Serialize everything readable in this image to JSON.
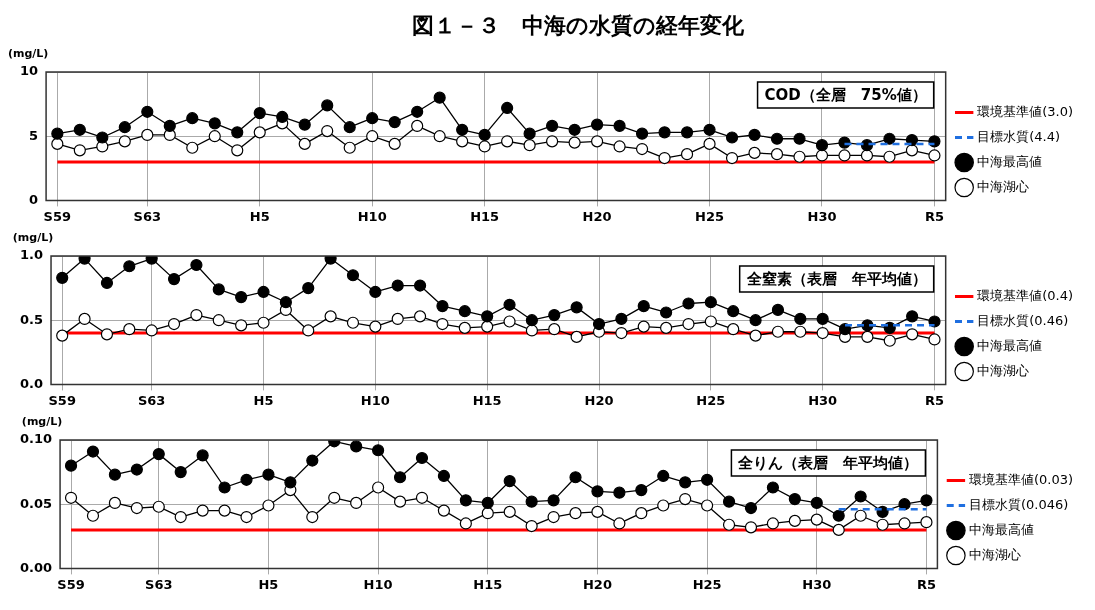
{
  "chart_data": [
    {
      "type": "line",
      "title": "図１－３　中海の水質の経年変化",
      "ylabel": "(mg/L)",
      "categories": [
        "S59",
        null,
        null,
        null,
        "S63",
        null,
        null,
        null,
        null,
        "H5",
        null,
        null,
        null,
        null,
        "H10",
        null,
        null,
        null,
        null,
        "H15",
        null,
        null,
        null,
        null,
        "H20",
        null,
        null,
        null,
        null,
        "H25",
        null,
        null,
        null,
        null,
        "H30",
        null,
        null,
        null,
        null,
        "R5"
      ],
      "series": [
        {
          "name": "目標水質(4.4)",
          "color": "#1f6fe0",
          "marker": "none",
          "line_style": "dashed",
          "values": [
            null,
            null,
            null,
            null,
            null,
            null,
            null,
            null,
            null,
            null,
            null,
            null,
            null,
            null,
            null,
            null,
            null,
            null,
            null,
            null,
            null,
            null,
            null,
            null,
            null,
            null,
            null,
            null,
            null,
            null,
            null,
            null,
            null,
            null,
            null,
            4.4,
            4.4,
            4.4,
            4.4,
            4.4
          ]
        },
        {
          "name": "中海最高値",
          "color": "#000000",
          "values": [
            5.2,
            5.5,
            4.9,
            5.7,
            6.9,
            5.8,
            6.4,
            6.0,
            5.3,
            6.8,
            6.5,
            5.9,
            7.4,
            5.7,
            6.4,
            6.1,
            6.9,
            8.0,
            5.5,
            5.1,
            7.2,
            5.2,
            5.8,
            5.5,
            5.9,
            5.8,
            5.2,
            5.3,
            5.3,
            5.5,
            4.9,
            5.1,
            4.8,
            4.8,
            4.3,
            4.5,
            4.3,
            4.8,
            4.7,
            4.6
          ]
        },
        {
          "name": "中海湖心",
          "color": "#ffffff",
          "values": [
            4.4,
            3.9,
            4.2,
            4.6,
            5.1,
            5.1,
            4.1,
            5.0,
            3.9,
            5.3,
            6.0,
            4.4,
            5.4,
            4.1,
            5.0,
            4.4,
            5.8,
            5.0,
            4.6,
            4.2,
            4.6,
            4.3,
            4.6,
            4.5,
            4.6,
            4.2,
            4.0,
            3.3,
            3.6,
            4.4,
            3.3,
            3.7,
            3.6,
            3.4,
            3.5,
            3.5,
            3.5,
            3.4,
            3.9,
            3.5
          ]
        }
      ],
      "ref_lines": [
        {
          "axis": "y",
          "value": 3.0,
          "label": "環境基準値(3.0)",
          "color": "#ff0000"
        }
      ],
      "annotations": [
        "COD（全層　75%値）"
      ],
      "ylim": [
        0,
        10
      ],
      "yticks": [
        0,
        5,
        10
      ],
      "grid": true,
      "legend": "right",
      "marker": "circle",
      "line_style": "solid"
    },
    {
      "type": "line",
      "ylabel": "(mg/L)",
      "categories": [
        "S59",
        null,
        null,
        null,
        "S63",
        null,
        null,
        null,
        null,
        "H5",
        null,
        null,
        null,
        null,
        "H10",
        null,
        null,
        null,
        null,
        "H15",
        null,
        null,
        null,
        null,
        "H20",
        null,
        null,
        null,
        null,
        "H25",
        null,
        null,
        null,
        null,
        "H30",
        null,
        null,
        null,
        null,
        "R5"
      ],
      "series": [
        {
          "name": "目標水質(0.46)",
          "color": "#1f6fe0",
          "marker": "none",
          "line_style": "dashed",
          "values": [
            null,
            null,
            null,
            null,
            null,
            null,
            null,
            null,
            null,
            null,
            null,
            null,
            null,
            null,
            null,
            null,
            null,
            null,
            null,
            null,
            null,
            null,
            null,
            null,
            null,
            null,
            null,
            null,
            null,
            null,
            null,
            null,
            null,
            null,
            null,
            0.46,
            0.46,
            0.46,
            0.46,
            0.46
          ]
        },
        {
          "name": "中海最高値",
          "color": "#000000",
          "values": [
            0.83,
            0.98,
            0.79,
            0.92,
            0.98,
            0.82,
            0.93,
            0.74,
            0.68,
            0.72,
            0.64,
            0.75,
            0.98,
            0.85,
            0.72,
            0.77,
            0.77,
            0.61,
            0.57,
            0.53,
            0.62,
            0.5,
            0.54,
            0.6,
            0.47,
            0.51,
            0.61,
            0.56,
            0.63,
            0.64,
            0.57,
            0.5,
            0.58,
            0.51,
            0.51,
            0.43,
            0.46,
            0.44,
            0.53,
            0.49
          ]
        },
        {
          "name": "中海湖心",
          "color": "#ffffff",
          "values": [
            0.38,
            0.51,
            0.39,
            0.43,
            0.42,
            0.47,
            0.54,
            0.5,
            0.46,
            0.48,
            0.58,
            0.42,
            0.53,
            0.48,
            0.45,
            0.51,
            0.53,
            0.47,
            0.44,
            0.45,
            0.49,
            0.42,
            0.43,
            0.37,
            0.41,
            0.4,
            0.45,
            0.44,
            0.47,
            0.49,
            0.43,
            0.38,
            0.41,
            0.41,
            0.4,
            0.37,
            0.37,
            0.34,
            0.39,
            0.35
          ]
        }
      ],
      "ref_lines": [
        {
          "axis": "y",
          "value": 0.4,
          "label": "環境基準値(0.4)",
          "color": "#ff0000"
        }
      ],
      "annotations": [
        "全窒素（表層　年平均値）"
      ],
      "ylim": [
        0,
        1
      ],
      "yticks": [
        {
          "value": 0,
          "label": "0.0"
        },
        {
          "value": 0.5,
          "label": "0.5"
        },
        {
          "value": 1,
          "label": "1.0"
        }
      ],
      "grid": true,
      "legend": "right",
      "marker": "circle",
      "line_style": "solid"
    },
    {
      "type": "line",
      "ylabel": "(mg/L)",
      "categories": [
        "S59",
        null,
        null,
        null,
        "S63",
        null,
        null,
        null,
        null,
        "H5",
        null,
        null,
        null,
        null,
        "H10",
        null,
        null,
        null,
        null,
        "H15",
        null,
        null,
        null,
        null,
        "H20",
        null,
        null,
        null,
        null,
        "H25",
        null,
        null,
        null,
        null,
        "H30",
        null,
        null,
        null,
        null,
        "R5"
      ],
      "series": [
        {
          "name": "目標水質(0.046)",
          "color": "#1f6fe0",
          "marker": "none",
          "line_style": "dashed",
          "values": [
            null,
            null,
            null,
            null,
            null,
            null,
            null,
            null,
            null,
            null,
            null,
            null,
            null,
            null,
            null,
            null,
            null,
            null,
            null,
            null,
            null,
            null,
            null,
            null,
            null,
            null,
            null,
            null,
            null,
            null,
            null,
            null,
            null,
            null,
            null,
            0.046,
            0.046,
            0.046,
            0.046,
            0.046
          ]
        },
        {
          "name": "中海最高値",
          "color": "#000000",
          "values": [
            0.08,
            0.091,
            0.073,
            0.077,
            0.089,
            0.075,
            0.088,
            0.063,
            0.069,
            0.073,
            0.067,
            0.084,
            0.099,
            0.095,
            0.092,
            0.071,
            0.086,
            0.072,
            0.053,
            0.051,
            0.068,
            0.052,
            0.053,
            0.071,
            0.06,
            0.059,
            0.061,
            0.072,
            0.067,
            0.069,
            0.052,
            0.047,
            0.063,
            0.054,
            0.051,
            0.041,
            0.056,
            0.044,
            0.05,
            0.053
          ]
        },
        {
          "name": "中海湖心",
          "color": "#ffffff",
          "values": [
            0.055,
            0.041,
            0.051,
            0.047,
            0.048,
            0.04,
            0.045,
            0.045,
            0.04,
            0.049,
            0.061,
            0.04,
            0.055,
            0.051,
            0.063,
            0.052,
            0.055,
            0.045,
            0.035,
            0.043,
            0.044,
            0.033,
            0.04,
            0.043,
            0.044,
            0.035,
            0.043,
            0.049,
            0.054,
            0.049,
            0.034,
            0.032,
            0.035,
            0.037,
            0.038,
            0.03,
            0.041,
            0.034,
            0.035,
            0.036
          ]
        }
      ],
      "ref_lines": [
        {
          "axis": "y",
          "value": 0.03,
          "label": "環境基準値(0.03)",
          "color": "#ff0000"
        }
      ],
      "annotations": [
        "全りん（表層　年平均値）"
      ],
      "ylim": [
        0,
        0.1
      ],
      "yticks": [
        {
          "value": 0,
          "label": "0.00"
        },
        {
          "value": 0.05,
          "label": "0.05"
        },
        {
          "value": 0.1,
          "label": "0.10"
        }
      ],
      "grid": true,
      "legend": "right",
      "marker": "circle",
      "line_style": "solid"
    }
  ]
}
